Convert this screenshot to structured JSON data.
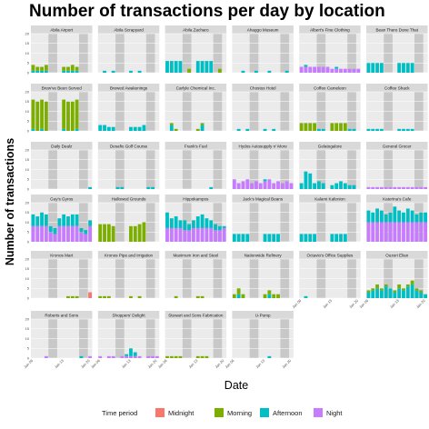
{
  "chart_data": {
    "type": "bar",
    "layout": "facet_wrap",
    "title": "Number of transactions per day by location",
    "xlabel": "Date",
    "ylabel": "Number of transactions",
    "ylim": [
      0,
      20
    ],
    "y_ticks": [
      0,
      5,
      10,
      15,
      20
    ],
    "x_ticks": [
      "Jan 06",
      "Jan 13",
      "Jan 20"
    ],
    "days": 14,
    "weekend_shading": [
      [
        4,
        5
      ],
      [
        11,
        12
      ]
    ],
    "legend": {
      "title": "Time period",
      "position": "bottom",
      "entries": [
        {
          "name": "Midnight",
          "color": "#F8766D"
        },
        {
          "name": "Morning",
          "color": "#7CAE00"
        },
        {
          "name": "Afternoon",
          "color": "#00BFC4"
        },
        {
          "name": "Night",
          "color": "#C77CFF"
        }
      ]
    },
    "panels": [
      {
        "name": "Abila Airport",
        "morning": [
          3,
          2,
          2,
          3,
          0,
          0,
          0,
          2,
          2,
          3,
          2,
          0,
          0,
          0
        ],
        "afternoon": [
          1,
          1,
          1,
          1,
          0,
          0,
          0,
          1,
          1,
          1,
          1,
          0,
          0,
          0
        ]
      },
      {
        "name": "Abila Scrapyard",
        "afternoon": [
          0,
          1,
          0,
          1,
          0,
          0,
          0,
          1,
          0,
          1,
          0,
          0,
          0,
          0
        ]
      },
      {
        "name": "Abila Zacharo",
        "afternoon": [
          6,
          6,
          6,
          6,
          0,
          0,
          0,
          6,
          6,
          6,
          6,
          0,
          0,
          0
        ],
        "morning": [
          0,
          0,
          0,
          0,
          0,
          2,
          0,
          0,
          0,
          0,
          0,
          0,
          2,
          0
        ]
      },
      {
        "name": "Ahaggo Museum",
        "afternoon": [
          0,
          0,
          1,
          0,
          0,
          1,
          0,
          0,
          1,
          0,
          0,
          0,
          1,
          0
        ]
      },
      {
        "name": "Albert's Fine Clothing",
        "afternoon": [
          0,
          1,
          0,
          0,
          0,
          0,
          0,
          0,
          1,
          0,
          0,
          0,
          0,
          0
        ],
        "night": [
          3,
          3,
          3,
          3,
          3,
          3,
          3,
          2,
          2,
          2,
          2,
          2,
          2,
          2
        ]
      },
      {
        "name": "Bean There Done That",
        "afternoon": [
          5,
          5,
          5,
          5,
          0,
          0,
          0,
          5,
          5,
          5,
          5,
          0,
          0,
          0
        ]
      },
      {
        "name": "Brew've Been Served",
        "morning": [
          15,
          15,
          15,
          15,
          0,
          0,
          0,
          15,
          15,
          15,
          15,
          0,
          0,
          0
        ],
        "afternoon": [
          1,
          0,
          1,
          0,
          0,
          0,
          0,
          1,
          0,
          0,
          1,
          0,
          0,
          0
        ]
      },
      {
        "name": "Brewed Awakenings",
        "afternoon": [
          3,
          3,
          2,
          2,
          0,
          0,
          0,
          2,
          2,
          2,
          3,
          0,
          0,
          0
        ]
      },
      {
        "name": "Carlyle Chemical Inc.",
        "morning": [
          0,
          1,
          1,
          0,
          0,
          0,
          0,
          1,
          1,
          0,
          0,
          0,
          0,
          0
        ],
        "afternoon": [
          0,
          3,
          0,
          0,
          0,
          0,
          0,
          0,
          3,
          0,
          0,
          0,
          0,
          0
        ]
      },
      {
        "name": "Chostus Hotel",
        "afternoon": [
          0,
          1,
          0,
          1,
          0,
          0,
          0,
          1,
          0,
          1,
          0,
          0,
          0,
          0
        ]
      },
      {
        "name": "Coffee Cameleon",
        "morning": [
          4,
          4,
          4,
          4,
          0,
          0,
          0,
          4,
          4,
          4,
          4,
          0,
          0,
          0
        ],
        "afternoon": [
          0,
          0,
          0,
          0,
          1,
          1,
          0,
          0,
          0,
          0,
          0,
          1,
          1,
          0
        ]
      },
      {
        "name": "Coffee Shack",
        "afternoon": [
          1,
          1,
          1,
          1,
          0,
          0,
          0,
          1,
          1,
          1,
          1,
          0,
          0,
          0
        ]
      },
      {
        "name": "Daily Dealz",
        "afternoon": [
          0,
          0,
          0,
          0,
          0,
          0,
          0,
          0,
          0,
          0,
          0,
          0,
          0,
          1
        ]
      },
      {
        "name": "Desafio Golf Course",
        "afternoon": [
          0,
          0,
          0,
          0,
          1,
          1,
          0,
          0,
          0,
          0,
          0,
          1,
          1,
          0
        ]
      },
      {
        "name": "Frank's Fuel",
        "afternoon": [
          0,
          0,
          0,
          0,
          0,
          0,
          0,
          0,
          0,
          0,
          1,
          0,
          0,
          0
        ]
      },
      {
        "name": "Hydos Autosupply n' More",
        "afternoon": [
          0,
          0,
          0,
          0,
          0,
          0,
          0,
          1,
          0,
          0,
          0,
          0,
          0,
          0
        ],
        "night": [
          5,
          3,
          4,
          5,
          3,
          4,
          3,
          4,
          5,
          3,
          4,
          3,
          4,
          3
        ]
      },
      {
        "name": "Gelatogalore",
        "afternoon": [
          3,
          9,
          8,
          3,
          4,
          3,
          0,
          2,
          3,
          4,
          3,
          2,
          2,
          0
        ]
      },
      {
        "name": "General Grocer",
        "night": [
          1,
          1,
          1,
          1,
          1,
          1,
          1,
          1,
          1,
          1,
          1,
          1,
          1,
          1
        ]
      },
      {
        "name": "Guy's Gyros",
        "night": [
          8,
          8,
          8,
          8,
          5,
          4,
          8,
          8,
          8,
          8,
          8,
          5,
          4,
          8
        ],
        "afternoon": [
          6,
          5,
          7,
          6,
          3,
          3,
          4,
          6,
          5,
          6,
          6,
          2,
          2,
          3
        ]
      },
      {
        "name": "Hallowed Grounds",
        "morning": [
          9,
          9,
          9,
          8,
          0,
          0,
          0,
          8,
          8,
          9,
          10,
          0,
          0,
          0
        ]
      },
      {
        "name": "Hippokampos",
        "night": [
          7,
          7,
          7,
          7,
          6,
          6,
          7,
          7,
          7,
          7,
          7,
          6,
          6,
          7
        ],
        "afternoon": [
          8,
          5,
          6,
          4,
          5,
          3,
          4,
          6,
          7,
          5,
          4,
          3,
          2,
          1
        ]
      },
      {
        "name": "Jack's Magical Beans",
        "afternoon": [
          4,
          4,
          4,
          4,
          0,
          0,
          0,
          4,
          4,
          4,
          4,
          0,
          0,
          0
        ]
      },
      {
        "name": "Kalami Kafenion",
        "afternoon": [
          4,
          4,
          4,
          4,
          0,
          0,
          0,
          4,
          4,
          4,
          4,
          0,
          0,
          0
        ]
      },
      {
        "name": "Katerina's Cafe",
        "night": [
          10,
          10,
          10,
          10,
          10,
          10,
          10,
          10,
          10,
          10,
          10,
          10,
          10,
          10
        ],
        "afternoon": [
          6,
          5,
          7,
          6,
          4,
          5,
          8,
          6,
          5,
          7,
          6,
          4,
          5,
          5
        ]
      },
      {
        "name": "Kronos Mart",
        "morning": [
          0,
          0,
          0,
          0,
          0,
          0,
          0,
          0,
          1,
          1,
          1,
          0,
          0,
          0
        ],
        "midnight": [
          0,
          0,
          0,
          0,
          0,
          0,
          0,
          0,
          0,
          0,
          0,
          0,
          0,
          3
        ]
      },
      {
        "name": "Kronos Pipe and Irrigation",
        "morning": [
          1,
          1,
          1,
          0,
          0,
          0,
          0,
          1,
          0,
          1,
          0,
          0,
          0,
          0
        ]
      },
      {
        "name": "Maximum Iron and Steel",
        "morning": [
          0,
          0,
          1,
          0,
          0,
          0,
          0,
          1,
          1,
          0,
          0,
          0,
          0,
          0
        ]
      },
      {
        "name": "Nationwide Refinery",
        "morning": [
          2,
          3,
          2,
          0,
          0,
          0,
          0,
          2,
          2,
          2,
          2,
          0,
          0,
          0
        ],
        "afternoon": [
          0,
          2,
          0,
          0,
          0,
          0,
          0,
          0,
          2,
          0,
          0,
          0,
          0,
          0
        ]
      },
      {
        "name": "Octavio's Office Supplies",
        "afternoon": [
          0,
          1,
          0,
          0,
          0,
          0,
          0,
          0,
          0,
          0,
          0,
          0,
          0,
          0
        ]
      },
      {
        "name": "Ouzeri Elian",
        "morning": [
          1,
          1,
          2,
          1,
          1,
          0,
          1,
          2,
          1,
          1,
          2,
          1,
          1,
          0
        ],
        "afternoon": [
          3,
          4,
          5,
          4,
          6,
          5,
          3,
          5,
          4,
          6,
          7,
          4,
          3,
          2
        ]
      },
      {
        "name": "Roberts and Sons",
        "afternoon": [
          0,
          0,
          0,
          0,
          0,
          0,
          0,
          0,
          0,
          0,
          0,
          1,
          0,
          0
        ],
        "night": [
          0,
          0,
          0,
          1,
          0,
          0,
          0,
          0,
          0,
          0,
          0,
          0,
          0,
          1
        ]
      },
      {
        "name": "Shoppers' Delight",
        "afternoon": [
          0,
          0,
          0,
          0,
          0,
          0,
          1,
          4,
          2,
          0,
          0,
          0,
          0,
          0
        ],
        "night": [
          1,
          0,
          1,
          1,
          0,
          1,
          1,
          1,
          1,
          1,
          0,
          1,
          1,
          1
        ]
      },
      {
        "name": "Stewart and Sons Fabrication",
        "morning": [
          1,
          1,
          1,
          1,
          0,
          0,
          0,
          1,
          1,
          1,
          0,
          0,
          0,
          0
        ]
      },
      {
        "name": "U-Pump",
        "afternoon": [
          0,
          0,
          0,
          0,
          0,
          0,
          0,
          0,
          1,
          0,
          0,
          0,
          0,
          0
        ]
      }
    ]
  }
}
